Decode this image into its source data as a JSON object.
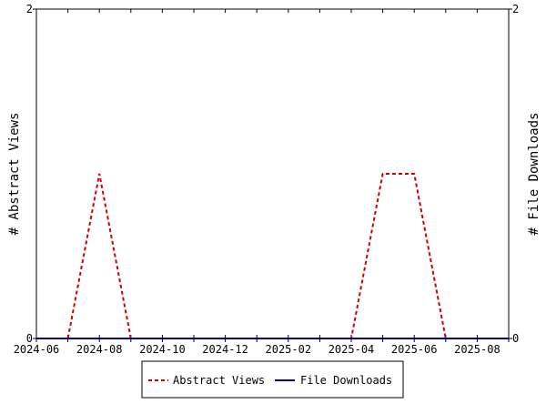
{
  "chart_data": {
    "type": "line",
    "x": [
      "2024-06",
      "2024-07",
      "2024-08",
      "2024-09",
      "2024-10",
      "2024-11",
      "2024-12",
      "2025-01",
      "2025-02",
      "2025-03",
      "2025-04",
      "2025-05",
      "2025-06",
      "2025-07",
      "2025-08",
      "2025-09"
    ],
    "x_ticks": [
      "2024-06",
      "2024-08",
      "2024-10",
      "2024-12",
      "2025-02",
      "2025-04",
      "2025-06",
      "2025-08"
    ],
    "ylabel_left": "# Abstract Views",
    "ylabel_right": "# File Downloads",
    "ylim_left": [
      0,
      2
    ],
    "ylim_right": [
      0,
      2
    ],
    "yticks_left": [
      "0",
      "2"
    ],
    "yticks_right": [
      "0",
      "2"
    ],
    "legend_position": "bottom",
    "grid": false,
    "series": [
      {
        "name": "Abstract Views",
        "axis": "left",
        "color": "#cc0000",
        "style": "dashed",
        "values": [
          0,
          0,
          1,
          0,
          0,
          0,
          0,
          0,
          0,
          0,
          0,
          1,
          1,
          0,
          0,
          0
        ]
      },
      {
        "name": "File Downloads",
        "axis": "right",
        "color": "#000099",
        "style": "solid",
        "values": [
          0,
          0,
          0,
          0,
          0,
          0,
          0,
          0,
          0,
          0,
          0,
          0,
          0,
          0,
          0,
          0
        ]
      }
    ]
  }
}
